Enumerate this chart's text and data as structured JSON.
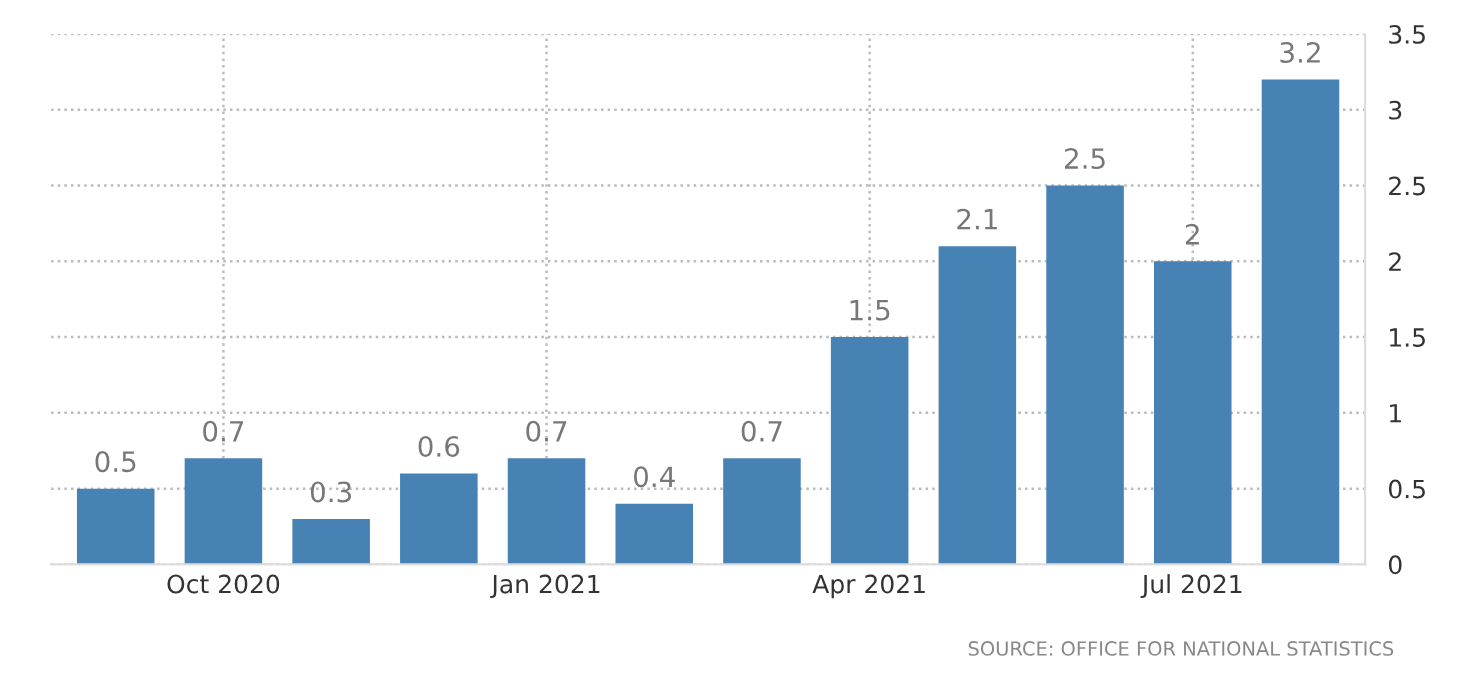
{
  "chart_data": {
    "type": "bar",
    "categories": [
      null,
      "Oct 2020",
      null,
      null,
      "Jan 2021",
      null,
      null,
      "Apr 2021",
      null,
      null,
      "Jul 2021",
      null
    ],
    "values": [
      0.5,
      0.7,
      0.3,
      0.6,
      0.7,
      0.4,
      0.7,
      1.5,
      2.1,
      2.5,
      2,
      3.2
    ],
    "color": "#4682b4",
    "ylim": [
      0,
      3.5
    ],
    "yticks": [
      0,
      0.5,
      1,
      1.5,
      2,
      2.5,
      3,
      3.5
    ],
    "grid": true,
    "data_labels": true,
    "annotations": [
      "SOURCE: OFFICE FOR NATIONAL STATISTICS"
    ]
  }
}
